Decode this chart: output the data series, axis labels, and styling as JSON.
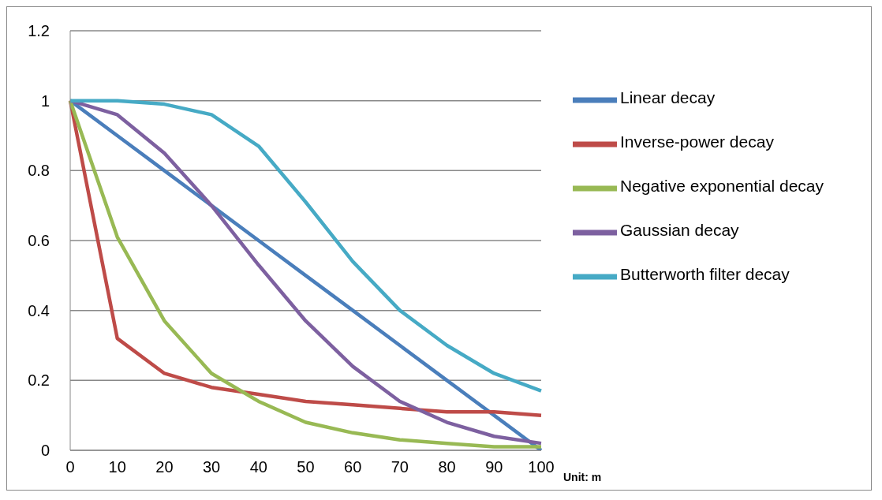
{
  "chart_data": {
    "type": "line",
    "xlabel": "Unit: m",
    "categories": [
      "0",
      "10",
      "20",
      "30",
      "40",
      "50",
      "60",
      "70",
      "80",
      "90",
      "100"
    ],
    "series": [
      {
        "name": "Linear decay",
        "color": "#4a7ebb",
        "values": [
          1,
          0.9,
          0.8,
          0.7,
          0.6,
          0.5,
          0.4,
          0.3,
          0.2,
          0.1,
          0
        ]
      },
      {
        "name": "Inverse-power decay",
        "color": "#be4b48",
        "values": [
          1,
          0.32,
          0.22,
          0.18,
          0.16,
          0.14,
          0.13,
          0.12,
          0.11,
          0.11,
          0.1
        ]
      },
      {
        "name": "Negative exponential decay",
        "color": "#98b954",
        "values": [
          1,
          0.61,
          0.37,
          0.22,
          0.14,
          0.08,
          0.05,
          0.03,
          0.02,
          0.01,
          0.01
        ]
      },
      {
        "name": "Gaussian decay",
        "color": "#7d60a0",
        "values": [
          1,
          0.96,
          0.85,
          0.7,
          0.53,
          0.37,
          0.24,
          0.14,
          0.08,
          0.04,
          0.02
        ]
      },
      {
        "name": "Butterworth filter decay",
        "color": "#46aac5",
        "values": [
          1,
          1,
          0.99,
          0.96,
          0.87,
          0.71,
          0.54,
          0.4,
          0.3,
          0.22,
          0.17
        ]
      }
    ],
    "ylim": [
      0,
      1.2
    ],
    "yticks": [
      0,
      0.2,
      0.4,
      0.6,
      0.8,
      1,
      1.2
    ],
    "grid": "y",
    "legend": "top right",
    "marker": "none",
    "line_style": "solid"
  }
}
